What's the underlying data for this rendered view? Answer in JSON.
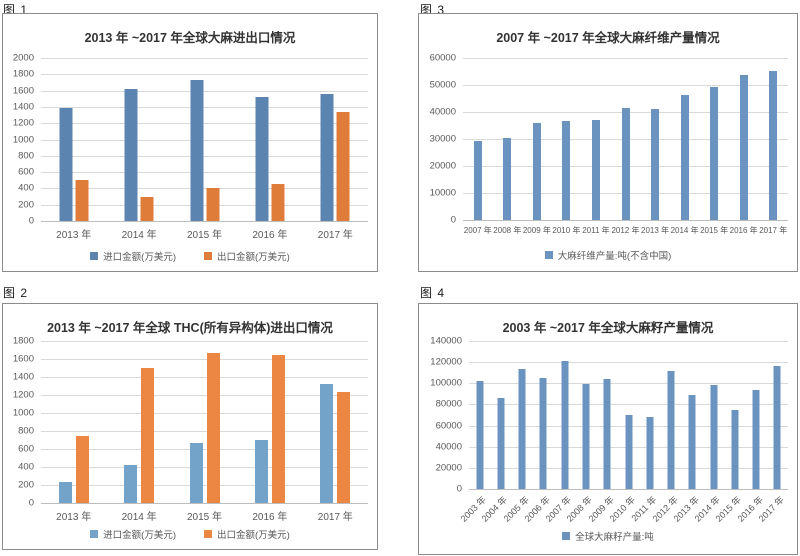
{
  "chart_data": [
    {
      "fig_label": "图 1",
      "title": "2013 年 ~2017 年全球大麻进出口情况",
      "type": "bar",
      "categories": [
        "2013 年",
        "2014 年",
        "2015 年",
        "2016 年",
        "2017 年"
      ],
      "series": [
        {
          "name": "进口金额(万美元)",
          "color": "#5b84b1",
          "values": [
            1390,
            1625,
            1730,
            1525,
            1560
          ]
        },
        {
          "name": "出口金额(万美元)",
          "color": "#e07c3a",
          "values": [
            505,
            300,
            405,
            455,
            1340
          ]
        }
      ],
      "xlabel": "",
      "ylabel": "",
      "ylim": [
        0,
        2000
      ],
      "ystep": 200,
      "grid": true,
      "legend_position": "bottom"
    },
    {
      "fig_label": "图 2",
      "title": "2013 年 ~2017 年全球 THC(所有异构体)进出口情况",
      "type": "bar",
      "categories": [
        "2013 年",
        "2014 年",
        "2015 年",
        "2016 年",
        "2017 年"
      ],
      "series": [
        {
          "name": "进口金额(万美元)",
          "color": "#74a3ca",
          "values": [
            235,
            420,
            670,
            705,
            1320
          ]
        },
        {
          "name": "出口金额(万美元)",
          "color": "#ec8743",
          "values": [
            750,
            1500,
            1670,
            1650,
            1230
          ]
        }
      ],
      "xlabel": "",
      "ylabel": "",
      "ylim": [
        0,
        1800
      ],
      "ystep": 200,
      "grid": true,
      "legend_position": "bottom"
    },
    {
      "fig_label": "图 3",
      "title": "2007 年 ~2017 年全球大麻纤维产量情况",
      "type": "bar",
      "categories": [
        "2007 年",
        "2008 年",
        "2009 年",
        "2010 年",
        "2011 年",
        "2012 年",
        "2013 年",
        "2014 年",
        "2015 年",
        "2016 年",
        "2017 年"
      ],
      "series": [
        {
          "name": "大麻纤维产量:吨(不含中国)",
          "color": "#6b93bf",
          "values": [
            29200,
            30400,
            36100,
            36600,
            36900,
            41500,
            41200,
            46200,
            49200,
            53600,
            55200
          ]
        }
      ],
      "xlabel": "",
      "ylabel": "",
      "ylim": [
        0,
        60000
      ],
      "ystep": 10000,
      "grid": true,
      "legend_position": "bottom"
    },
    {
      "fig_label": "图 4",
      "title": "2003 年 ~2017 年全球大麻籽产量情况",
      "type": "bar",
      "categories": [
        "2003 年",
        "2004 年",
        "2005 年",
        "2006 年",
        "2007 年",
        "2008 年",
        "2009 年",
        "2010 年",
        "2011 年",
        "2012 年",
        "2013 年",
        "2014 年",
        "2015 年",
        "2016 年",
        "2017 年"
      ],
      "series": [
        {
          "name": "全球大麻籽产量:吨",
          "color": "#6b93bf",
          "values": [
            102000,
            86500,
            114000,
            105000,
            121500,
            99500,
            104500,
            70000,
            68000,
            112000,
            88500,
            98500,
            75000,
            94000,
            116000
          ]
        }
      ],
      "xlabel": "",
      "ylabel": "",
      "ylim": [
        0,
        140000
      ],
      "ystep": 20000,
      "grid": true,
      "legend_position": "bottom",
      "x_tick_rotation": -45
    }
  ]
}
